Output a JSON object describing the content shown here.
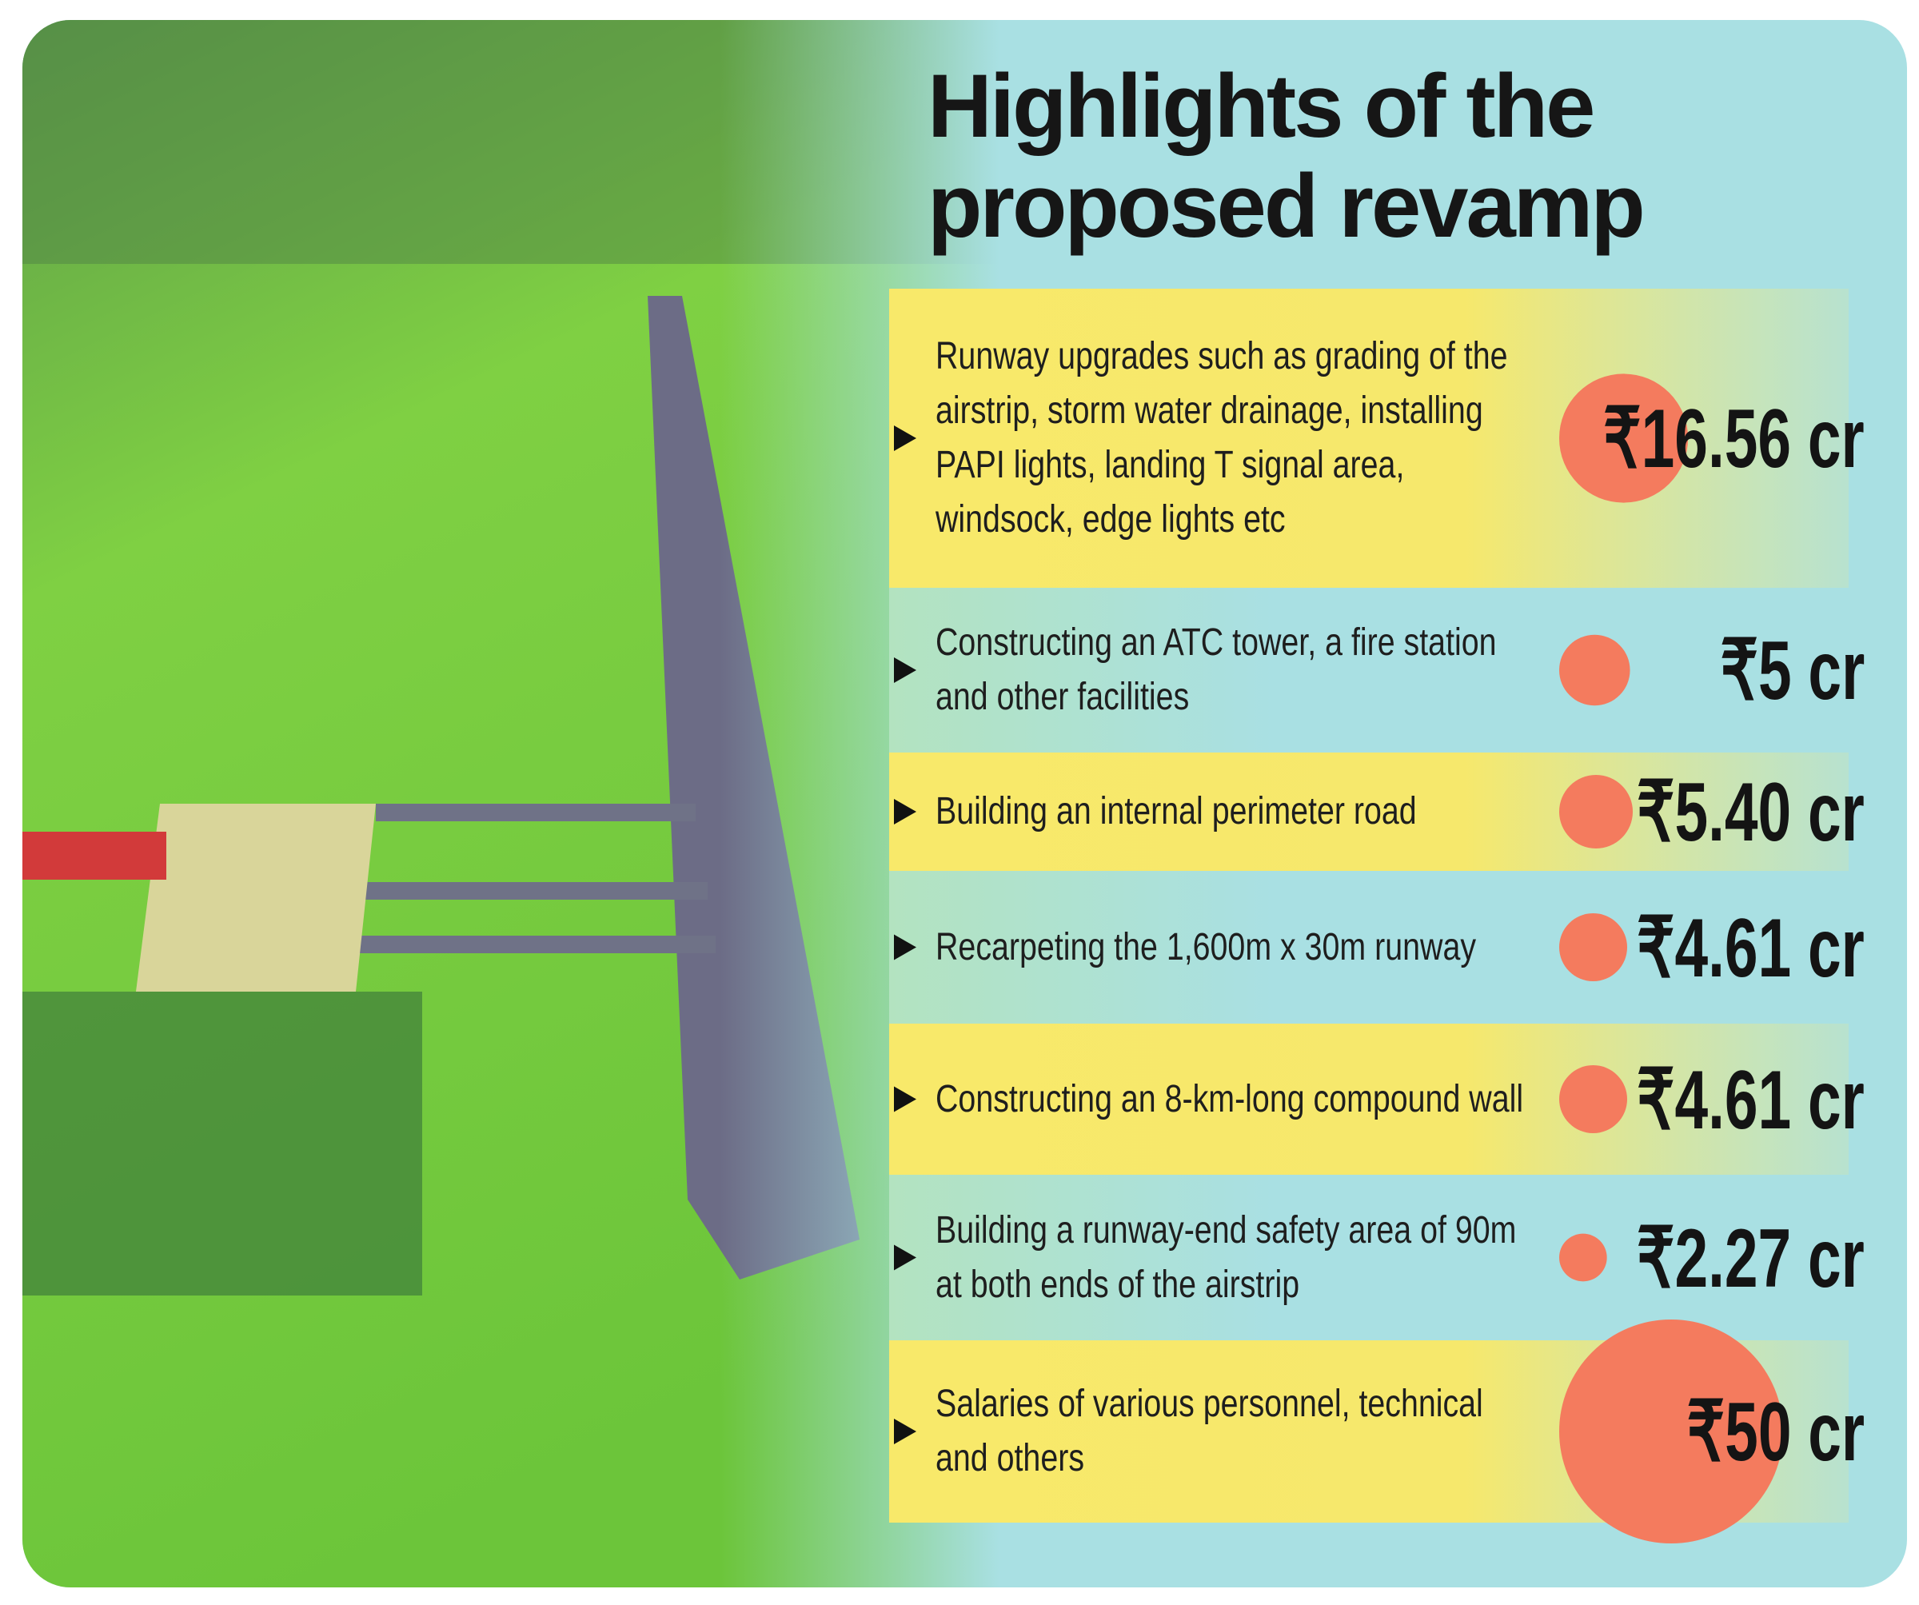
{
  "chart_data": {
    "type": "bubble",
    "title": "Highlights of the proposed revamp",
    "categories": [
      "Runway upgrades such as grading of the airstrip, storm water drainage, installing PAPI lights, landing T signal area, windsock, edge lights etc",
      "Constructing an ATC tower, a fire station and other facilities",
      "Building an internal perimeter road",
      "Recarpeting the 1,600m x 30m runway",
      "Constructing an 8-km-long compound wall",
      "Building a runway-end safety area of 90m at both ends of the airstrip",
      "Salaries of various personnel, technical and others"
    ],
    "values": [
      16.56,
      5,
      5.4,
      4.61,
      4.61,
      2.27,
      50
    ],
    "value_labels": [
      "₹16.56 cr",
      "₹5 cr",
      "₹5.40 cr",
      "₹4.61 cr",
      "₹4.61 cr",
      "₹2.27 cr",
      "₹50 cr"
    ],
    "color": "#f47b5e"
  }
}
